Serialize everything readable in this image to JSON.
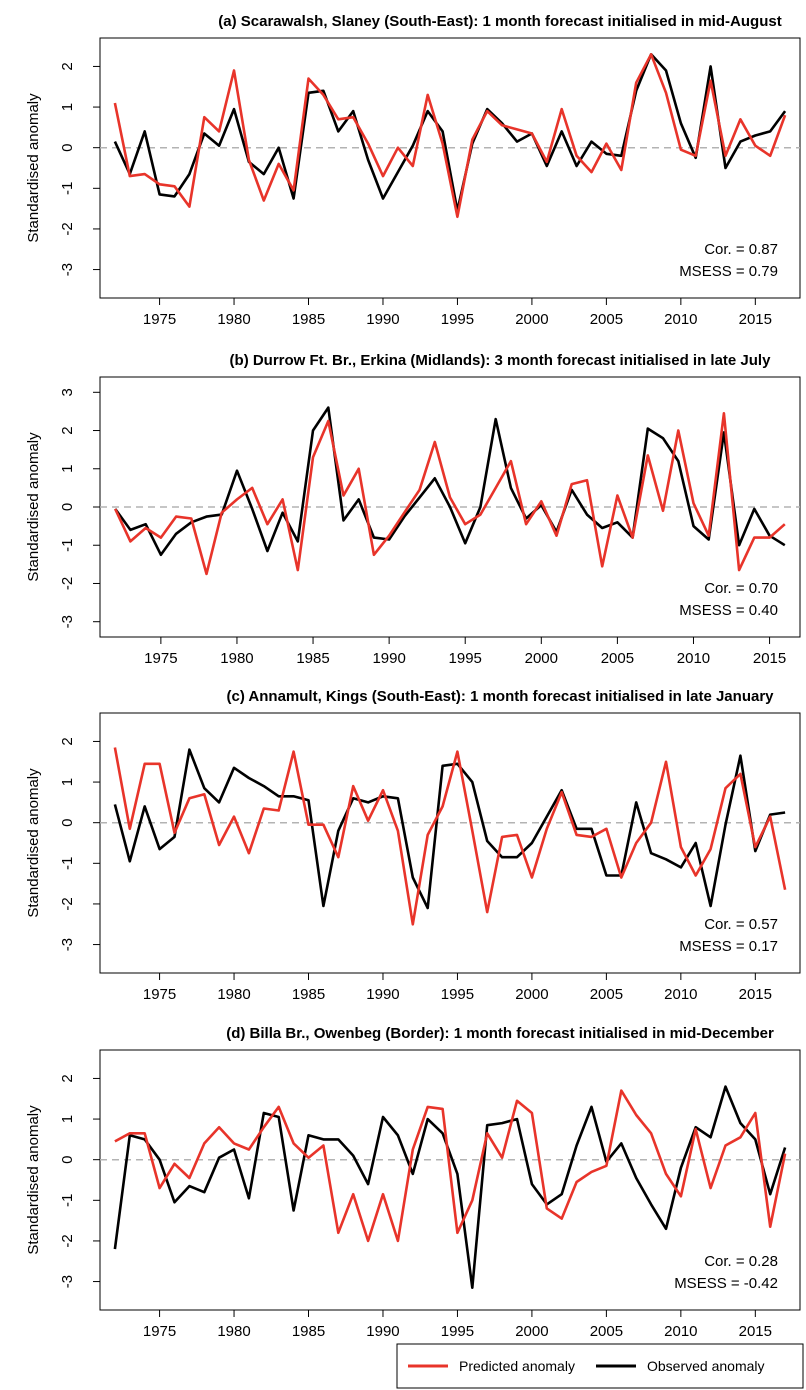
{
  "legend": {
    "predicted": "Predicted anomaly",
    "observed": "Observed anomaly"
  },
  "colors": {
    "predicted": "#e8342a",
    "observed": "#000000",
    "zero_line": "#b3b3b3"
  },
  "chart_data": [
    {
      "type": "line",
      "title": "(a) Scarawalsh, Slaney (South-East): 1 month forecast initialised in mid-August",
      "ylabel": "Standardised anomaly",
      "x_ticks": [
        1975,
        1980,
        1985,
        1990,
        1995,
        2000,
        2005,
        2010,
        2015
      ],
      "y_ticks": [
        2,
        1,
        0,
        -1,
        -2,
        -3
      ],
      "xlim": [
        1971,
        2018
      ],
      "ylim": [
        -3.7,
        2.7
      ],
      "stats": {
        "cor": "Cor. =  0.87",
        "msess": "MSESS =  0.79"
      },
      "x": [
        1972,
        1973,
        1974,
        1975,
        1976,
        1977,
        1978,
        1979,
        1980,
        1981,
        1982,
        1983,
        1984,
        1985,
        1986,
        1987,
        1988,
        1989,
        1990,
        1991,
        1992,
        1993,
        1994,
        1995,
        1996,
        1997,
        1998,
        1999,
        2000,
        2001,
        2002,
        2003,
        2004,
        2005,
        2006,
        2007,
        2008,
        2009,
        2010,
        2011,
        2012,
        2013,
        2014,
        2015,
        2016,
        2017
      ],
      "series": [
        {
          "name": "Predicted anomaly",
          "values": [
            1.1,
            -0.7,
            -0.65,
            -0.9,
            -0.95,
            -1.45,
            0.75,
            0.4,
            1.9,
            -0.3,
            -1.3,
            -0.4,
            -1.05,
            1.7,
            1.3,
            0.7,
            0.75,
            0.1,
            -0.7,
            0.0,
            -0.45,
            1.3,
            0.1,
            -1.7,
            0.2,
            0.9,
            0.55,
            0.45,
            0.35,
            -0.35,
            0.95,
            -0.2,
            -0.6,
            0.1,
            -0.55,
            1.6,
            2.3,
            1.35,
            -0.05,
            -0.2,
            1.65,
            -0.2,
            0.7,
            0.05,
            -0.2,
            0.8
          ]
        },
        {
          "name": "Observed anomaly",
          "values": [
            0.15,
            -0.65,
            0.4,
            -1.15,
            -1.2,
            -0.65,
            0.35,
            0.05,
            0.95,
            -0.35,
            -0.65,
            0.0,
            -1.25,
            1.35,
            1.4,
            0.4,
            0.9,
            -0.3,
            -1.25,
            -0.6,
            0.05,
            0.9,
            0.4,
            -1.55,
            0.1,
            0.95,
            0.6,
            0.15,
            0.35,
            -0.45,
            0.4,
            -0.45,
            0.15,
            -0.15,
            -0.2,
            1.4,
            2.3,
            1.9,
            0.6,
            -0.25,
            2.0,
            -0.5,
            0.15,
            0.3,
            0.4,
            0.9
          ]
        }
      ]
    },
    {
      "type": "line",
      "title": "(b) Durrow Ft. Br., Erkina (Midlands): 3 month forecast initialised in late July",
      "ylabel": "Standardised anomaly",
      "x_ticks": [
        1975,
        1980,
        1985,
        1990,
        1995,
        2000,
        2005,
        2010,
        2015
      ],
      "y_ticks": [
        3,
        2,
        1,
        0,
        -1,
        -2,
        -3
      ],
      "xlim": [
        1971,
        2017
      ],
      "ylim": [
        -3.4,
        3.4
      ],
      "stats": {
        "cor": "Cor. =  0.70",
        "msess": "MSESS =  0.40"
      },
      "x": [
        1972,
        1973,
        1974,
        1975,
        1976,
        1977,
        1978,
        1979,
        1980,
        1981,
        1982,
        1983,
        1984,
        1985,
        1986,
        1987,
        1988,
        1989,
        1990,
        1991,
        1992,
        1993,
        1994,
        1995,
        1996,
        1997,
        1998,
        1999,
        2000,
        2001,
        2002,
        2003,
        2004,
        2005,
        2006,
        2007,
        2008,
        2009,
        2010,
        2011,
        2012,
        2013,
        2014,
        2015,
        2016
      ],
      "series": [
        {
          "name": "Predicted anomaly",
          "values": [
            -0.05,
            -0.9,
            -0.55,
            -0.8,
            -0.25,
            -0.3,
            -1.75,
            -0.15,
            0.2,
            0.5,
            -0.45,
            0.2,
            -1.65,
            1.3,
            2.25,
            0.3,
            1.0,
            -1.25,
            -0.75,
            -0.15,
            0.45,
            1.7,
            0.25,
            -0.45,
            -0.2,
            0.5,
            1.2,
            -0.45,
            0.15,
            -0.75,
            0.6,
            0.7,
            -1.55,
            0.3,
            -0.8,
            1.35,
            -0.1,
            2.0,
            0.1,
            -0.75,
            2.45,
            -1.65,
            -0.8,
            -0.8,
            -0.45
          ]
        },
        {
          "name": "Observed anomaly",
          "values": [
            -0.05,
            -0.6,
            -0.45,
            -1.25,
            -0.7,
            -0.4,
            -0.25,
            -0.2,
            0.95,
            -0.05,
            -1.15,
            -0.15,
            -0.9,
            2.0,
            2.6,
            -0.35,
            0.2,
            -0.8,
            -0.85,
            -0.25,
            0.25,
            0.75,
            0.0,
            -0.95,
            0.0,
            2.3,
            0.5,
            -0.3,
            0.05,
            -0.65,
            0.45,
            -0.2,
            -0.55,
            -0.4,
            -0.8,
            2.05,
            1.8,
            1.2,
            -0.5,
            -0.85,
            1.95,
            -1.0,
            -0.05,
            -0.75,
            -1.0
          ]
        }
      ]
    },
    {
      "type": "line",
      "title": "(c) Annamult, Kings (South-East): 1 month forecast initialised in late January",
      "ylabel": "Standardised anomaly",
      "x_ticks": [
        1975,
        1980,
        1985,
        1990,
        1995,
        2000,
        2005,
        2010,
        2015
      ],
      "y_ticks": [
        2,
        1,
        0,
        -1,
        -2,
        -3
      ],
      "xlim": [
        1971,
        2018
      ],
      "ylim": [
        -3.7,
        2.7
      ],
      "stats": {
        "cor": "Cor. =  0.57",
        "msess": "MSESS = 0.17"
      },
      "x": [
        1972,
        1973,
        1974,
        1975,
        1976,
        1977,
        1978,
        1979,
        1980,
        1981,
        1982,
        1983,
        1984,
        1985,
        1986,
        1987,
        1988,
        1989,
        1990,
        1991,
        1992,
        1993,
        1994,
        1995,
        1996,
        1997,
        1998,
        1999,
        2000,
        2001,
        2002,
        2003,
        2004,
        2005,
        2006,
        2007,
        2008,
        2009,
        2010,
        2011,
        2012,
        2013,
        2014,
        2015,
        2016,
        2017
      ],
      "series": [
        {
          "name": "Predicted anomaly",
          "values": [
            1.85,
            -0.15,
            1.45,
            1.45,
            -0.25,
            0.6,
            0.7,
            -0.55,
            0.15,
            -0.75,
            0.35,
            0.3,
            1.75,
            -0.05,
            -0.05,
            -0.85,
            0.9,
            0.05,
            0.8,
            -0.2,
            -2.5,
            -0.3,
            0.4,
            1.75,
            -0.2,
            -2.2,
            -0.35,
            -0.3,
            -1.35,
            -0.15,
            0.75,
            -0.3,
            -0.35,
            -0.15,
            -1.35,
            -0.5,
            0.0,
            1.5,
            -0.6,
            -1.3,
            -0.65,
            0.85,
            1.2,
            -0.6,
            0.15,
            -1.65
          ]
        },
        {
          "name": "Observed anomaly",
          "values": [
            0.45,
            -0.95,
            0.4,
            -0.65,
            -0.35,
            1.8,
            0.85,
            0.5,
            1.35,
            1.1,
            0.9,
            0.65,
            0.65,
            0.55,
            -2.05,
            -0.2,
            0.6,
            0.5,
            0.65,
            0.6,
            -1.35,
            -2.1,
            1.4,
            1.45,
            1.0,
            -0.45,
            -0.85,
            -0.85,
            -0.5,
            0.15,
            0.8,
            -0.15,
            -0.15,
            -1.3,
            -1.3,
            0.5,
            -0.75,
            -0.9,
            -1.1,
            -0.5,
            -2.05,
            -0.05,
            1.65,
            -0.7,
            0.2,
            0.25
          ]
        }
      ]
    },
    {
      "type": "line",
      "title": "(d) Billa Br., Owenbeg (Border): 1 month forecast initialised in mid-December",
      "ylabel": "Standardised anomaly",
      "x_ticks": [
        1975,
        1980,
        1985,
        1990,
        1995,
        2000,
        2005,
        2010,
        2015
      ],
      "y_ticks": [
        2,
        1,
        0,
        -1,
        -2,
        -3
      ],
      "xlim": [
        1971,
        2018
      ],
      "ylim": [
        -3.7,
        2.7
      ],
      "stats": {
        "cor": "Cor. =  0.28",
        "msess": "MSESS = -0.42"
      },
      "x": [
        1972,
        1973,
        1974,
        1975,
        1976,
        1977,
        1978,
        1979,
        1980,
        1981,
        1982,
        1983,
        1984,
        1985,
        1986,
        1987,
        1988,
        1989,
        1990,
        1991,
        1992,
        1993,
        1994,
        1995,
        1996,
        1997,
        1998,
        1999,
        2000,
        2001,
        2002,
        2003,
        2004,
        2005,
        2006,
        2007,
        2008,
        2009,
        2010,
        2011,
        2012,
        2013,
        2014,
        2015,
        2016,
        2017
      ],
      "series": [
        {
          "name": "Predicted anomaly",
          "values": [
            0.45,
            0.65,
            0.65,
            -0.7,
            -0.1,
            -0.45,
            0.4,
            0.8,
            0.4,
            0.25,
            0.8,
            1.3,
            0.4,
            0.05,
            0.35,
            -1.8,
            -0.85,
            -2.0,
            -0.85,
            -2.0,
            0.25,
            1.3,
            1.25,
            -1.8,
            -1.0,
            0.65,
            0.05,
            1.45,
            1.15,
            -1.2,
            -1.45,
            -0.55,
            -0.3,
            -0.15,
            1.7,
            1.1,
            0.65,
            -0.35,
            -0.9,
            0.75,
            -0.7,
            0.35,
            0.55,
            1.15,
            -1.65,
            0.15
          ]
        },
        {
          "name": "Observed anomaly",
          "values": [
            -2.2,
            0.6,
            0.5,
            0.0,
            -1.05,
            -0.65,
            -0.8,
            0.05,
            0.25,
            -0.95,
            1.15,
            1.05,
            -1.25,
            0.6,
            0.5,
            0.5,
            0.1,
            -0.6,
            1.05,
            0.6,
            -0.35,
            1.0,
            0.65,
            -0.35,
            -3.15,
            0.85,
            0.9,
            1.0,
            -0.6,
            -1.1,
            -0.85,
            0.35,
            1.3,
            -0.05,
            0.4,
            -0.45,
            -1.1,
            -1.7,
            -0.2,
            0.8,
            0.55,
            1.8,
            0.9,
            0.5,
            -0.85,
            0.3
          ]
        }
      ]
    }
  ]
}
